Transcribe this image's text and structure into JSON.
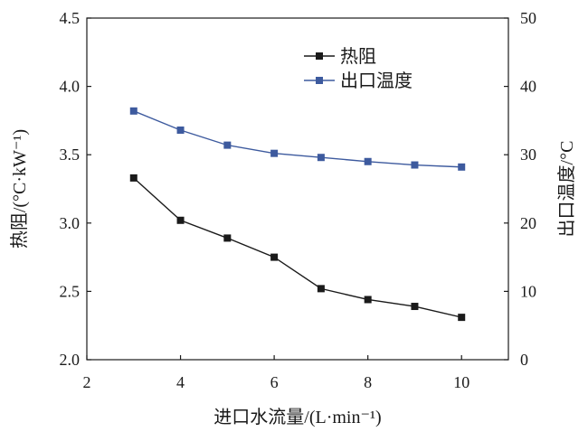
{
  "chart_data": {
    "type": "line",
    "title": "",
    "xlabel": "进口水流量/(L·min⁻¹)",
    "ylabel_left": "热阻/(°C·kW⁻¹)",
    "ylabel_right": "出口温度/°C",
    "xlim": [
      2,
      11
    ],
    "ylim_left": [
      2.0,
      4.5
    ],
    "ylim_right": [
      0,
      50
    ],
    "x_ticks": [
      "2",
      "4",
      "6",
      "8",
      "10"
    ],
    "y_ticks_left": [
      "2.0",
      "2.5",
      "3.0",
      "3.5",
      "4.0",
      "4.5"
    ],
    "y_ticks_right": [
      "0",
      "10",
      "20",
      "30",
      "40",
      "50"
    ],
    "grid": false,
    "legend_position": "top-right",
    "x": [
      3,
      4,
      5,
      6,
      7,
      8,
      9,
      10
    ],
    "series": [
      {
        "name": "热阻",
        "axis": "left",
        "color": "#1a1a1a",
        "values": [
          3.33,
          3.02,
          2.89,
          2.75,
          2.52,
          2.44,
          2.39,
          2.31
        ]
      },
      {
        "name": "出口温度",
        "axis": "right",
        "color": "#3d5a9e",
        "values": [
          36.4,
          33.6,
          31.4,
          30.2,
          29.6,
          29.0,
          28.5,
          28.2
        ]
      }
    ]
  }
}
